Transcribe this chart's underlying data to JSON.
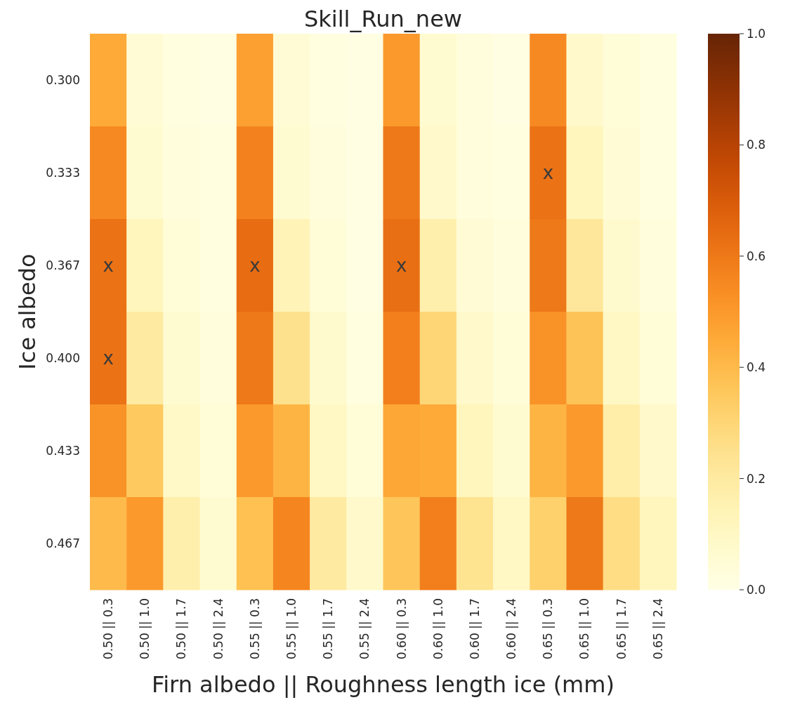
{
  "chart_data": {
    "type": "heatmap",
    "title": "Skill_Run_new",
    "xlabel": "Firn albedo || Roughness length ice (mm)",
    "ylabel": "Ice albedo",
    "categories": [
      "0.50 || 0.3",
      "0.50 || 1.0",
      "0.50 || 1.7",
      "0.50 || 2.4",
      "0.55 || 0.3",
      "0.55 || 1.0",
      "0.55 || 1.7",
      "0.55 || 2.4",
      "0.60 || 0.3",
      "0.60 || 1.0",
      "0.60 || 1.7",
      "0.60 || 2.4",
      "0.65 || 0.3",
      "0.65 || 1.0",
      "0.65 || 1.7",
      "0.65 || 2.4"
    ],
    "y_categories": [
      "0.300",
      "0.333",
      "0.367",
      "0.400",
      "0.433",
      "0.467"
    ],
    "cells": [
      [
        0.45,
        0.05,
        0.02,
        0.01,
        0.48,
        0.05,
        0.02,
        0.01,
        0.5,
        0.06,
        0.03,
        0.01,
        0.55,
        0.08,
        0.04,
        0.02
      ],
      [
        0.55,
        0.06,
        0.03,
        0.02,
        0.57,
        0.06,
        0.03,
        0.01,
        0.6,
        0.08,
        0.03,
        0.02,
        0.62,
        0.12,
        0.05,
        0.02
      ],
      [
        0.62,
        0.12,
        0.04,
        0.02,
        0.64,
        0.14,
        0.04,
        0.01,
        0.63,
        0.17,
        0.05,
        0.03,
        0.6,
        0.22,
        0.07,
        0.03
      ],
      [
        0.62,
        0.2,
        0.06,
        0.03,
        0.6,
        0.25,
        0.07,
        0.02,
        0.58,
        0.3,
        0.08,
        0.04,
        0.52,
        0.37,
        0.1,
        0.04
      ],
      [
        0.52,
        0.35,
        0.09,
        0.04,
        0.5,
        0.42,
        0.1,
        0.04,
        0.46,
        0.45,
        0.12,
        0.06,
        0.42,
        0.5,
        0.18,
        0.08
      ],
      [
        0.4,
        0.5,
        0.17,
        0.06,
        0.38,
        0.56,
        0.2,
        0.08,
        0.36,
        0.58,
        0.24,
        0.1,
        0.32,
        0.6,
        0.27,
        0.12
      ]
    ],
    "cell_labels": [
      [
        null,
        null,
        null,
        null,
        null,
        null,
        null,
        null,
        null,
        null,
        null,
        null,
        null,
        null,
        null,
        null
      ],
      [
        null,
        null,
        null,
        null,
        null,
        null,
        null,
        null,
        null,
        null,
        null,
        null,
        "x",
        null,
        null,
        null
      ],
      [
        "x",
        null,
        null,
        null,
        "x",
        null,
        null,
        null,
        "x",
        null,
        null,
        null,
        null,
        null,
        null,
        null
      ],
      [
        "x",
        null,
        null,
        null,
        null,
        null,
        null,
        null,
        null,
        null,
        null,
        null,
        null,
        null,
        null,
        null
      ],
      [
        null,
        null,
        null,
        null,
        null,
        null,
        null,
        null,
        null,
        null,
        null,
        null,
        null,
        null,
        null,
        null
      ],
      [
        null,
        null,
        null,
        null,
        null,
        null,
        null,
        null,
        null,
        null,
        null,
        null,
        null,
        null,
        null,
        null
      ]
    ],
    "clim": [
      0,
      1
    ],
    "cticks": [
      {
        "value": 0,
        "label": "0.0"
      },
      {
        "value": 0.2,
        "label": "0.2"
      },
      {
        "value": 0.4,
        "label": "0.4"
      },
      {
        "value": 0.6,
        "label": "0.6"
      },
      {
        "value": 0.8,
        "label": "0.8"
      },
      {
        "value": 1,
        "label": "1.0"
      }
    ]
  }
}
